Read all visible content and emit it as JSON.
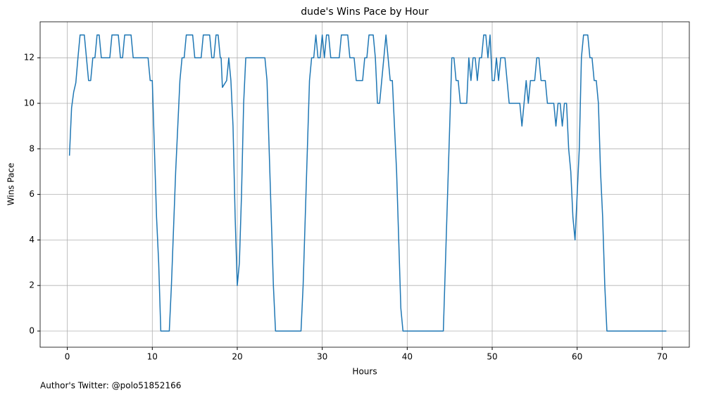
{
  "chart_data": {
    "type": "line",
    "title": "dude's Wins Pace by Hour",
    "xlabel": "Hours",
    "ylabel": "Wins Pace",
    "annotation": "Author's Twitter: @polo51852166",
    "xlim": [
      -3.2,
      73.2
    ],
    "ylim": [
      -0.71,
      13.58
    ],
    "xticks": [
      0,
      10,
      20,
      30,
      40,
      50,
      60,
      70
    ],
    "yticks": [
      0,
      2,
      4,
      6,
      8,
      10,
      12
    ],
    "grid": true,
    "x": [
      0.25,
      0.5,
      0.75,
      1.0,
      1.25,
      1.5,
      2.0,
      2.25,
      2.5,
      2.75,
      3.0,
      3.25,
      3.5,
      3.75,
      4.0,
      5.0,
      5.25,
      6.0,
      6.25,
      6.5,
      6.75,
      7.5,
      7.75,
      9.5,
      9.75,
      10.0,
      10.25,
      10.5,
      10.75,
      11.0,
      12.0,
      12.25,
      12.5,
      12.75,
      13.0,
      13.25,
      13.5,
      13.75,
      14.0,
      14.75,
      15.0,
      15.75,
      16.0,
      16.75,
      17.0,
      17.25,
      17.5,
      17.75,
      18.0,
      18.1,
      18.25,
      18.75,
      19.0,
      19.25,
      19.5,
      19.75,
      20.0,
      20.25,
      20.5,
      20.75,
      21.0,
      23.25,
      23.5,
      23.75,
      24.0,
      24.25,
      24.5,
      27.5,
      27.75,
      28.0,
      28.25,
      28.5,
      28.75,
      29.0,
      29.25,
      29.5,
      29.75,
      30.0,
      30.25,
      30.5,
      30.75,
      31.0,
      32.0,
      32.25,
      33.0,
      33.25,
      33.75,
      34.0,
      34.75,
      35.0,
      35.25,
      35.5,
      36.0,
      36.25,
      36.5,
      36.75,
      37.0,
      37.25,
      37.5,
      37.75,
      38.0,
      38.25,
      38.5,
      38.75,
      39.0,
      39.25,
      39.5,
      44.25,
      44.5,
      44.75,
      45.0,
      45.25,
      45.5,
      45.75,
      46.0,
      46.25,
      47.0,
      47.25,
      47.5,
      47.75,
      48.0,
      48.25,
      48.5,
      48.75,
      49.0,
      49.25,
      49.5,
      49.75,
      50.0,
      50.25,
      50.5,
      50.75,
      51.0,
      51.5,
      51.75,
      52.0,
      53.25,
      53.5,
      53.75,
      54.0,
      54.25,
      54.5,
      55.0,
      55.25,
      55.5,
      55.75,
      56.25,
      56.5,
      57.25,
      57.5,
      57.75,
      58.0,
      58.25,
      58.5,
      58.75,
      59.0,
      59.25,
      59.5,
      59.75,
      60.0,
      60.25,
      60.5,
      60.75,
      61.25,
      61.5,
      61.75,
      62.0,
      62.25,
      62.5,
      62.75,
      63.0,
      63.25,
      63.5,
      70.5
    ],
    "series": [
      {
        "name": "Wins Pace",
        "color": "#1f77b4",
        "values": [
          7.7,
          9.8,
          10.5,
          10.9,
          12,
          13,
          13,
          12,
          11,
          11,
          12,
          12,
          13,
          13,
          12,
          12,
          13,
          13,
          12,
          12,
          13,
          13,
          12,
          12,
          11,
          11,
          8,
          5,
          3,
          0,
          0,
          2,
          4.5,
          7,
          9,
          11,
          12,
          12,
          13,
          13,
          12,
          12,
          13,
          13,
          12,
          12,
          13,
          13,
          12,
          12,
          10.7,
          11,
          12,
          11,
          9,
          5,
          2,
          3,
          6,
          10,
          12,
          12,
          11,
          8,
          5,
          2,
          0,
          0,
          2,
          5,
          8,
          11,
          12,
          12,
          13,
          12,
          12,
          13,
          12,
          13,
          13,
          12,
          12,
          13,
          13,
          12,
          12,
          11,
          11,
          12,
          12,
          13,
          13,
          12,
          10,
          10,
          11,
          12,
          13,
          12,
          11,
          11,
          9,
          7,
          4,
          1,
          0,
          0,
          3,
          6,
          9,
          12,
          12,
          11,
          11,
          10,
          10,
          12,
          11,
          12,
          12,
          11,
          12,
          12,
          13,
          13,
          12,
          13,
          11,
          11,
          12,
          11,
          12,
          12,
          11,
          10,
          10,
          9,
          10,
          11,
          10,
          11,
          11,
          12,
          12,
          11,
          11,
          10,
          10,
          9,
          10,
          10,
          9,
          10,
          10,
          8,
          7,
          5,
          4,
          6,
          8,
          12,
          13,
          13,
          12,
          12,
          11,
          11,
          10,
          7,
          5,
          2,
          0,
          0
        ]
      }
    ]
  }
}
